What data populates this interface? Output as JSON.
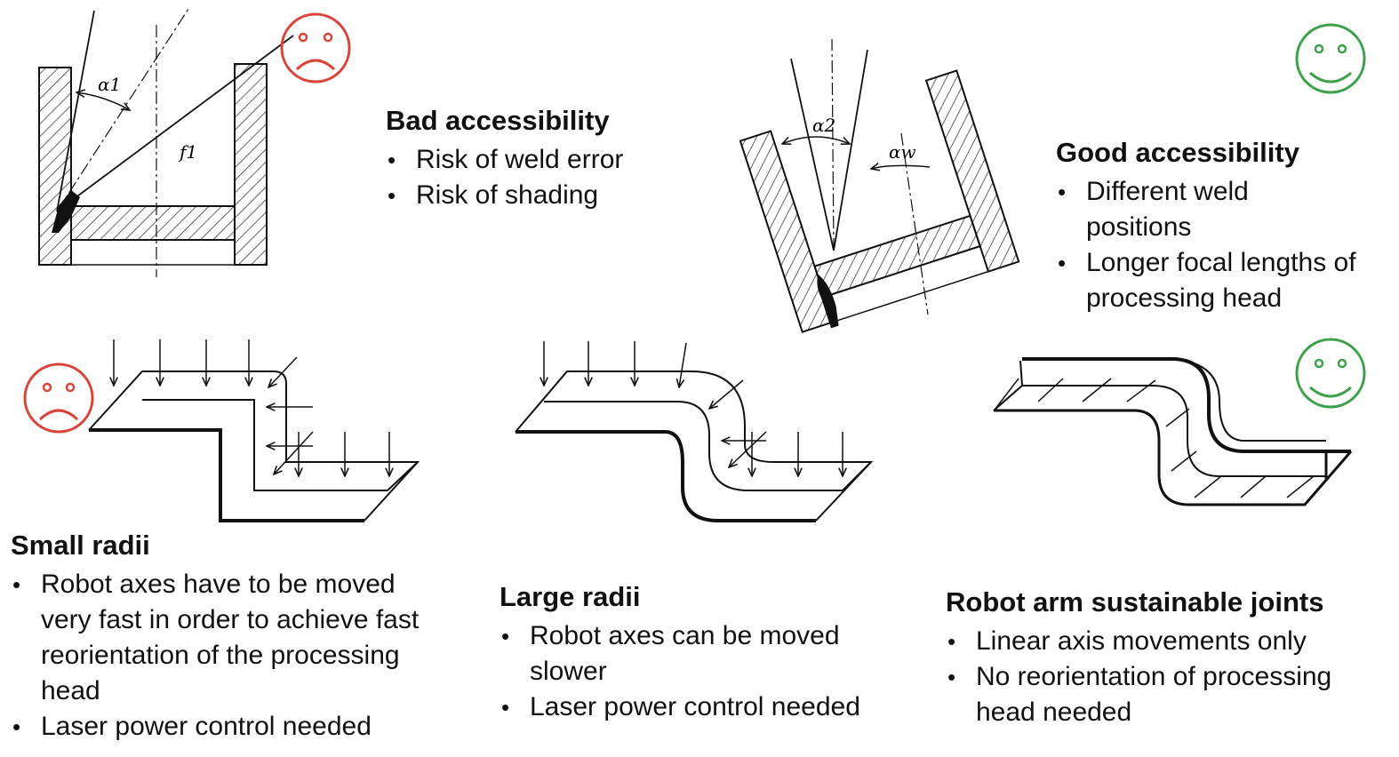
{
  "panels": {
    "bad_access": {
      "title": "Bad accessibility",
      "bullets": [
        "Risk of weld error",
        "Risk of shading"
      ]
    },
    "good_access": {
      "title": "Good accessibility",
      "bullets": [
        "Different weld positions",
        "Longer focal lengths of processing head"
      ]
    },
    "small_radii": {
      "title": "Small radii",
      "bullets": [
        "Robot axes have to be moved very fast in order to achieve fast reorientation of the processing head",
        "Laser power control needed"
      ]
    },
    "large_radii": {
      "title": "Large radii",
      "bullets": [
        "Robot axes can be moved slower",
        "Laser power control needed"
      ]
    },
    "sustainable": {
      "title": "Robot arm sustainable joints",
      "bullets": [
        "Linear axis movements only",
        "No reorientation of processing head needed"
      ]
    }
  },
  "symbols": {
    "alpha1": "α1",
    "f1": "f1",
    "alpha2": "α2",
    "alphaw": "αw"
  },
  "colors": {
    "sad_face": "#d9453a",
    "happy_face": "#3ea04a",
    "line": "#111111"
  },
  "icons": [
    "sad-face-icon",
    "happy-face-icon"
  ]
}
